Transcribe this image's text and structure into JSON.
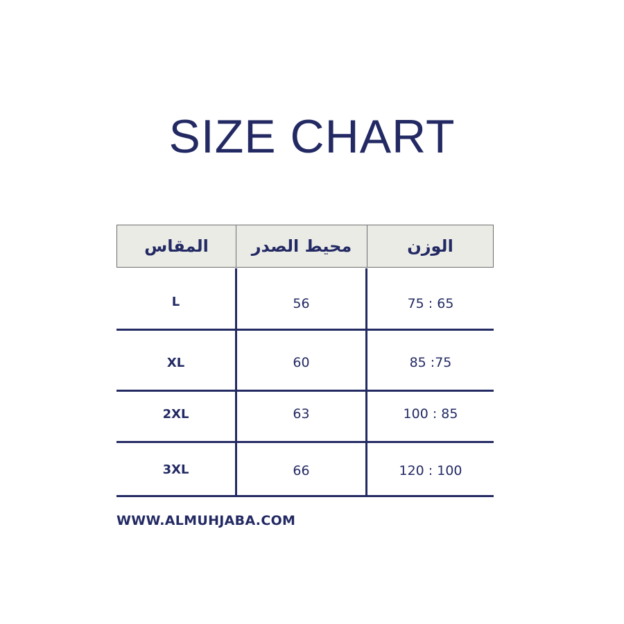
{
  "title": "SIZE CHART",
  "table": {
    "headers": [
      "المقاس",
      "محيط الصدر",
      "الوزن"
    ],
    "rows": [
      {
        "size": "L",
        "chest": "56",
        "weight": "75 : 65"
      },
      {
        "size": "XL",
        "chest": "60",
        "weight": "85 :75"
      },
      {
        "size": "2XL",
        "chest": "63",
        "weight": "100 : 85"
      },
      {
        "size": "3XL",
        "chest": "66",
        "weight": "120 : 100"
      }
    ]
  },
  "footer": "WWW.ALMUHJABA.COM",
  "colors": {
    "primary": "#232a63",
    "header_bg": "#ebebe6"
  }
}
